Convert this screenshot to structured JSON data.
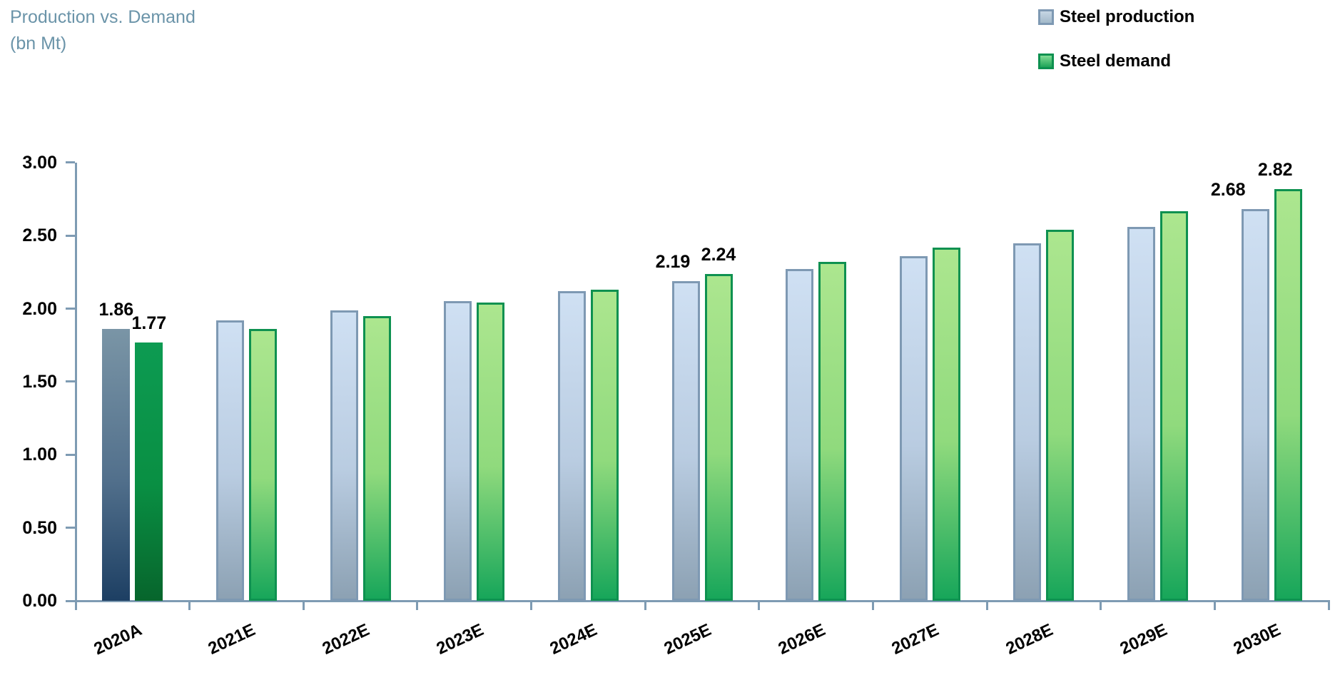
{
  "title": {
    "line1": "Production vs. Demand",
    "line2": "(bn Mt)"
  },
  "legend": {
    "items": [
      {
        "key": "production",
        "label": "Steel production"
      },
      {
        "key": "demand",
        "label": "Steel demand"
      }
    ],
    "position": "top-right"
  },
  "chart_data": {
    "type": "bar",
    "title": "Production vs. Demand (bn Mt)",
    "xlabel": "",
    "ylabel": "bn Mt",
    "ylim": [
      0,
      3
    ],
    "grid": false,
    "legend_position": "top-right",
    "categories": [
      "2020A",
      "2021E",
      "2022E",
      "2023E",
      "2024E",
      "2025E",
      "2026E",
      "2027E",
      "2028E",
      "2029E",
      "2030E"
    ],
    "series": [
      {
        "name": "Steel production",
        "key": "production",
        "values": [
          1.86,
          1.92,
          1.99,
          2.05,
          2.12,
          2.19,
          2.27,
          2.36,
          2.45,
          2.56,
          2.68
        ]
      },
      {
        "name": "Steel demand",
        "key": "demand",
        "values": [
          1.77,
          1.86,
          1.95,
          2.04,
          2.13,
          2.24,
          2.32,
          2.42,
          2.54,
          2.67,
          2.82
        ]
      }
    ],
    "value_labels": [
      {
        "series": "production",
        "category": "2020A",
        "text": "1.86"
      },
      {
        "series": "demand",
        "category": "2020A",
        "text": "1.77"
      },
      {
        "series": "production",
        "category": "2025E",
        "text": "2.19"
      },
      {
        "series": "demand",
        "category": "2025E",
        "text": "2.24"
      },
      {
        "series": "production",
        "category": "2030E",
        "text": "2.68"
      },
      {
        "series": "demand",
        "category": "2030E",
        "text": "2.82"
      }
    ],
    "y_ticks": [
      {
        "v": 0.0,
        "label": "0.00"
      },
      {
        "v": 0.5,
        "label": "0.50"
      },
      {
        "v": 1.0,
        "label": "1.00"
      },
      {
        "v": 1.5,
        "label": "1.50"
      },
      {
        "v": 2.0,
        "label": "2.00"
      },
      {
        "v": 2.5,
        "label": "2.50"
      },
      {
        "v": 3.0,
        "label": "3.00"
      }
    ],
    "colors": {
      "axis": "#7E9BB3",
      "title_text": "#6B94A9",
      "label_text": "#000000",
      "production_fill_top": "#CFE0F3",
      "production_fill_mid": "#B9CCE1",
      "production_fill_bottom": "#8CA1B3",
      "production_border": "#7E99B3",
      "production_actual_top": "#7A95A6",
      "production_actual_mid": "#52708C",
      "production_actual_bottom": "#1D3F63",
      "demand_fill_top": "#ACE68F",
      "demand_fill_mid": "#90DA7D",
      "demand_fill_bottom": "#17A65A",
      "demand_border": "#0E9150",
      "demand_actual_top": "#0D9B52",
      "demand_actual_mid": "#098F43",
      "demand_actual_bottom": "#07652C"
    }
  }
}
